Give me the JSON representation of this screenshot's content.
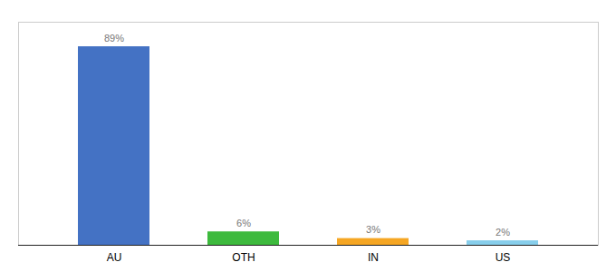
{
  "chart_data": {
    "type": "bar",
    "categories": [
      "AU",
      "OTH",
      "IN",
      "US"
    ],
    "values": [
      89,
      6,
      3,
      2
    ],
    "value_labels": [
      "89%",
      "6%",
      "3%",
      "2%"
    ],
    "colors": [
      "#4472c4",
      "#3dba3d",
      "#f5a623",
      "#87ceeb"
    ],
    "ylim": [
      0,
      100
    ],
    "data_labels": true,
    "tick_labels": "x"
  }
}
